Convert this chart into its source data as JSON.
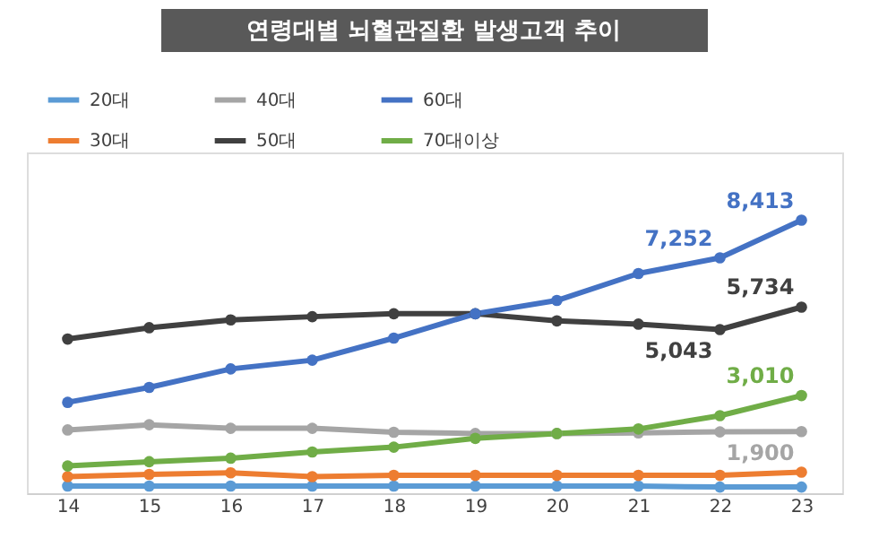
{
  "chart_data": {
    "type": "line",
    "title": "연령대별 뇌혈관질환 발생고객 추이",
    "categories": [
      "14",
      "15",
      "16",
      "17",
      "18",
      "19",
      "20",
      "21",
      "22",
      "23"
    ],
    "ylim": [
      0,
      10500
    ],
    "legend": "top left",
    "marker": "circle",
    "line_style": "solid",
    "grid": false,
    "tick_labels": "x",
    "series": [
      {
        "name": "20대",
        "color": "#5b9bd5",
        "values": [
          220,
          220,
          220,
          220,
          220,
          220,
          220,
          220,
          190,
          190
        ]
      },
      {
        "name": "30대",
        "color": "#ed7d31",
        "values": [
          510,
          580,
          630,
          510,
          550,
          550,
          550,
          550,
          550,
          650
        ]
      },
      {
        "name": "40대",
        "color": "#a5a5a5",
        "values": [
          1950,
          2110,
          2000,
          2000,
          1880,
          1840,
          1840,
          1860,
          1890,
          1900
        ],
        "value_labels": [
          null,
          null,
          null,
          null,
          null,
          null,
          null,
          null,
          null,
          "1,900"
        ]
      },
      {
        "name": "50대",
        "color": "#404040",
        "values": [
          4750,
          5100,
          5340,
          5440,
          5530,
          5530,
          5310,
          5210,
          5043,
          5734
        ],
        "value_labels": [
          null,
          null,
          null,
          null,
          null,
          null,
          null,
          null,
          "5,043",
          "5,734"
        ]
      },
      {
        "name": "60대",
        "color": "#4472c4",
        "values": [
          2800,
          3260,
          3830,
          4100,
          4780,
          5530,
          5940,
          6770,
          7252,
          8413
        ],
        "value_labels": [
          null,
          null,
          null,
          null,
          null,
          null,
          null,
          null,
          "7,252",
          "8,413"
        ]
      },
      {
        "name": "70대이상",
        "color": "#70ad47",
        "values": [
          840,
          970,
          1080,
          1270,
          1420,
          1690,
          1840,
          1980,
          2390,
          3010
        ],
        "value_labels": [
          null,
          null,
          null,
          null,
          null,
          null,
          null,
          null,
          null,
          "3,010"
        ]
      }
    ]
  }
}
